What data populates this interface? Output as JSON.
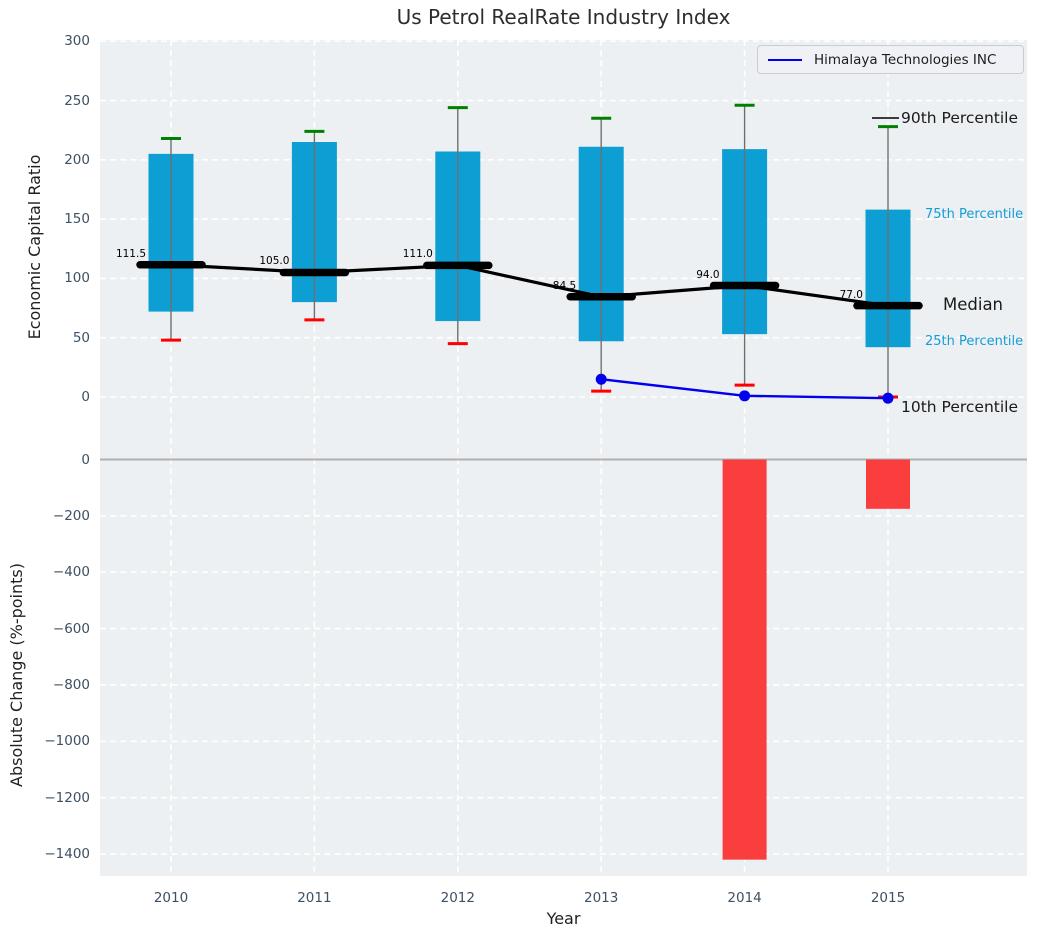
{
  "colors": {
    "panel_bg": "#edf0f2",
    "grid_white": "#ffffff",
    "bar_blue": "#0d9ed3",
    "bar_red": "#fa3d3d",
    "cap_green": "#008000",
    "cap_red": "#fe0000",
    "whisker_grey": "#6f6f6f",
    "median_black": "#000000",
    "company_blue": "#0000ee",
    "annotation_cyan": "#139cd8",
    "annotation_black": "#1a1a1a",
    "tick_text": "#3e5063",
    "zero_line": "#b0b0b0"
  },
  "chart_data": [
    {
      "type": "box-percentile",
      "title": "Us Petrol RealRate Industry Index",
      "ylabel": "Economic Capital Ratio",
      "yticks": [
        300,
        250,
        200,
        150,
        100,
        50,
        0
      ],
      "ylim": [
        -34,
        301
      ],
      "grid": true,
      "categories": [
        "2010",
        "2011",
        "2012",
        "2013",
        "2014",
        "2015"
      ],
      "percentiles": {
        "p90": [
          218,
          224,
          244,
          235,
          246,
          228
        ],
        "p75": [
          205,
          215,
          207,
          211,
          209,
          158
        ],
        "median": [
          111.5,
          105.0,
          111.0,
          84.5,
          94.0,
          77.0
        ],
        "p25": [
          72,
          80,
          64,
          47,
          53,
          42
        ],
        "p10": [
          48,
          65,
          45,
          5,
          10,
          0
        ]
      },
      "median_labels": [
        "111.5",
        "105.0",
        "111.0",
        "84.5",
        "94.0",
        "77.0"
      ],
      "company_line": {
        "name": "Himalaya Technologies INC",
        "years": [
          "2013",
          "2014",
          "2015"
        ],
        "values": [
          15,
          1,
          -1
        ]
      },
      "legend_position": "upper right",
      "annotations": [
        {
          "label": "90th Percentile",
          "value": 235,
          "style": "black-large"
        },
        {
          "label": "75th Percentile",
          "value": 153,
          "style": "cyan-small"
        },
        {
          "label": "Median",
          "value": 77,
          "style": "black-large"
        },
        {
          "label": "25th Percentile",
          "value": 46,
          "style": "cyan-small"
        },
        {
          "label": "10th Percentile",
          "value": -9,
          "style": "black-large"
        }
      ]
    },
    {
      "type": "bar",
      "ylabel": "Absolute Change (%-points)",
      "xlabel": "Year",
      "yticks": [
        0,
        -200,
        -400,
        -600,
        -800,
        -1000,
        -1200,
        -1400
      ],
      "ylim": [
        -1476,
        80
      ],
      "grid": true,
      "categories": [
        "2010",
        "2011",
        "2012",
        "2013",
        "2014",
        "2015"
      ],
      "values": [
        null,
        null,
        null,
        null,
        -1420,
        -175
      ]
    }
  ]
}
